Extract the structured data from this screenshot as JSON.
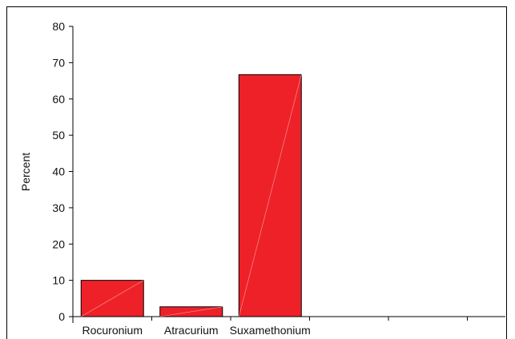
{
  "chart_data": {
    "type": "bar",
    "categories": [
      "Rocuronium",
      "Atracurium",
      "Suxamethonium",
      "",
      ""
    ],
    "values": [
      10,
      2.7,
      66.7,
      0,
      0
    ],
    "title": "",
    "xlabel": "",
    "ylabel": "Percent",
    "ylim": [
      0,
      80
    ],
    "yticks": [
      "0",
      "10",
      "20",
      "30",
      "40",
      "50",
      "60",
      "70",
      "80"
    ],
    "grid": false,
    "bar_color": "#ee2128"
  }
}
